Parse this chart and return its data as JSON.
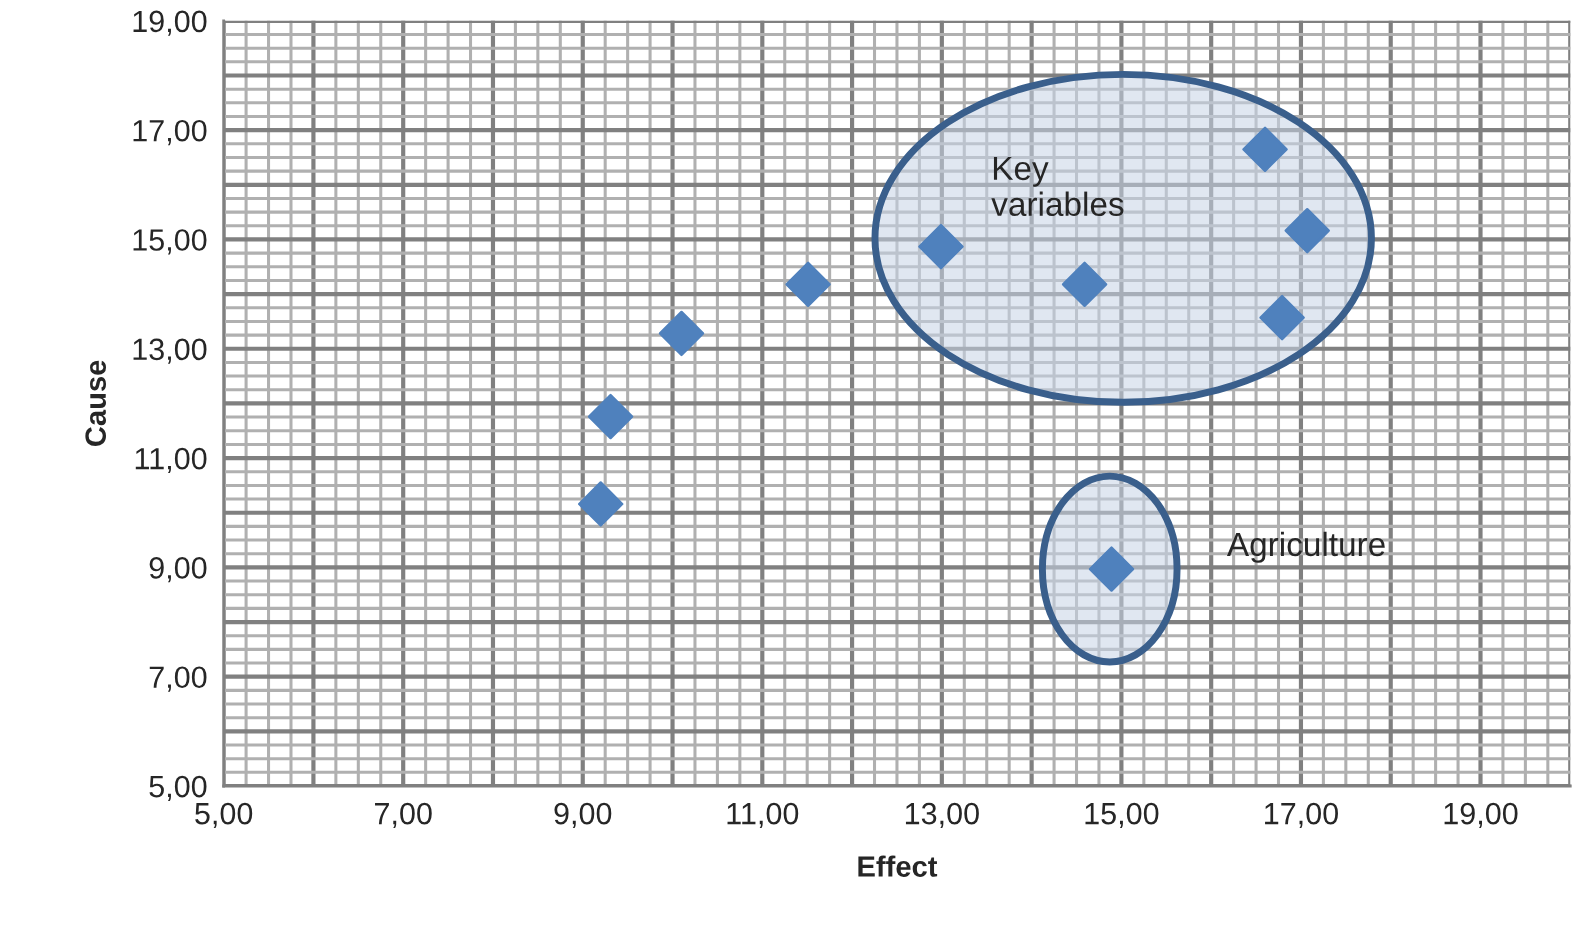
{
  "chart_data": {
    "type": "scatter",
    "xlabel": "Effect",
    "ylabel": "Cause",
    "x": [
      9.2,
      9.31,
      10.1,
      11.51,
      12.99,
      14.59,
      16.6,
      17.07,
      16.79,
      14.89
    ],
    "series": [
      {
        "color": "#4f81bd",
        "values": [
          10.16,
          11.76,
          13.28,
          14.18,
          14.87,
          14.18,
          16.65,
          15.16,
          13.57,
          8.97
        ]
      }
    ],
    "xlim": [
      5,
      20
    ],
    "ylim": [
      5,
      19
    ],
    "xticks": [
      {
        "value": 5,
        "label": "5,00"
      },
      {
        "value": 7,
        "label": "7,00"
      },
      {
        "value": 9,
        "label": "9,00"
      },
      {
        "value": 11,
        "label": "11,00"
      },
      {
        "value": 13,
        "label": "13,00"
      },
      {
        "value": 15,
        "label": "15,00"
      },
      {
        "value": 17,
        "label": "17,00"
      },
      {
        "value": 19,
        "label": "19,00"
      }
    ],
    "yticks": [
      {
        "value": 5,
        "label": "5,00"
      },
      {
        "value": 7,
        "label": "7,00"
      },
      {
        "value": 9,
        "label": "9,00"
      },
      {
        "value": 11,
        "label": "11,00"
      },
      {
        "value": 13,
        "label": "13,00"
      },
      {
        "value": 15,
        "label": "15,00"
      },
      {
        "value": 17,
        "label": "17,00"
      },
      {
        "value": 19,
        "label": "19,00"
      }
    ],
    "annotations": [
      "Key\nvariables",
      "Agriculture"
    ],
    "grid": true,
    "marker": "diamond"
  }
}
